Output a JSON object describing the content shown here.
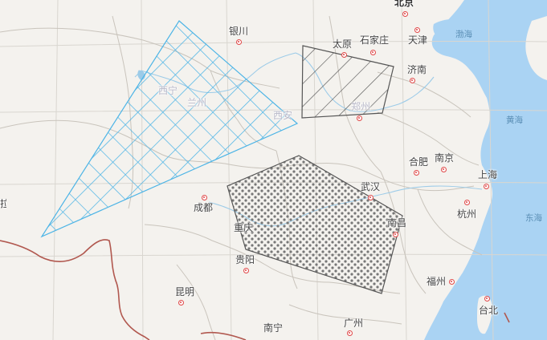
{
  "colors": {
    "land": "#f4f2ee",
    "sea": "#aad3f3",
    "grid_overlay": "#4cb4e6",
    "hatch_overlay": "#555555",
    "dots_overlay": "#777777",
    "city_marker": "#e04848",
    "border": "#b1584f"
  },
  "cities": {
    "beijing": "北京",
    "yinchuan": "银川",
    "taiyuan": "太原",
    "shijiazhuang": "石家庄",
    "tianjin": "天津",
    "jinan": "济南",
    "xining": "西宁",
    "lanzhou": "兰州",
    "xian": "西安",
    "zhengzhou": "郑州",
    "hefei": "合肥",
    "nanjing": "南京",
    "wuhan": "武汉",
    "shanghai": "上海",
    "chengdu": "成都",
    "hangzhou": "杭州",
    "chongqing": "重庆",
    "nanchang": "南昌",
    "guiyang": "贵阳",
    "fuzhou": "福州",
    "kunming": "昆明",
    "taibei": "台北",
    "nanning": "南宁",
    "guangzhou": "广州",
    "lasa": "拉萨"
  },
  "seas": {
    "bohai": "渤海",
    "huanghai": "黄海",
    "donghai": "东海"
  }
}
